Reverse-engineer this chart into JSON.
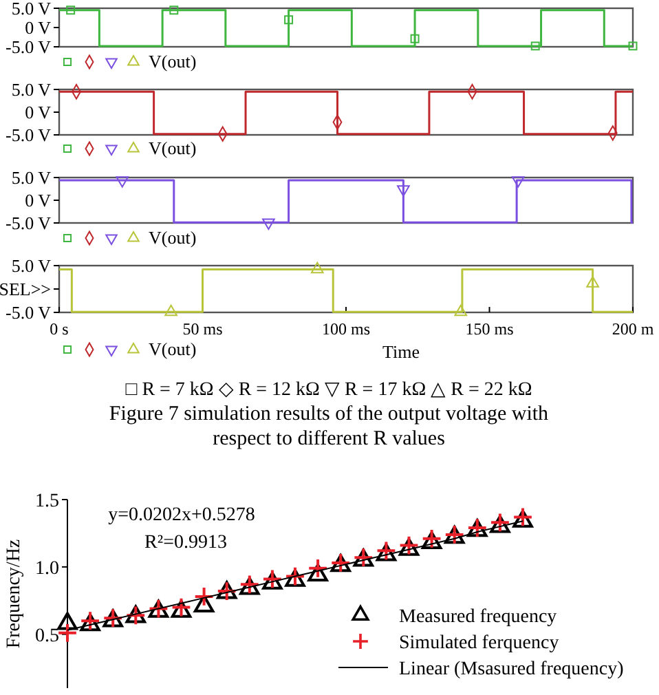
{
  "chart_data": [
    {
      "type": "step",
      "xlim": [
        0,
        200
      ],
      "ylim": [
        -5,
        5
      ],
      "yticks": [
        {
          "value": 5,
          "label": "5.0 V"
        },
        {
          "value": 0,
          "label": "0 V"
        },
        {
          "value": -5,
          "label": "-5.0 V"
        }
      ],
      "tick_labels": "y",
      "annotations": [
        "V(out)"
      ],
      "series": [
        {
          "type": "step",
          "color": "#3fb63f",
          "marker": "none",
          "x": [
            0,
            14,
            36,
            58,
            80,
            102,
            124,
            146,
            168,
            190,
            200
          ],
          "values": [
            4.5,
            -4.8,
            4.5,
            -4.8,
            4.5,
            -4.8,
            4.5,
            -4.8,
            4.5,
            -4.8,
            -4.8
          ]
        },
        {
          "type": "scatter",
          "color": "#3fb63f",
          "marker": "square",
          "x": [
            4,
            40,
            80,
            124,
            166,
            200
          ],
          "values": [
            4.5,
            4.5,
            2,
            -2.9,
            -4.8,
            -4.8
          ]
        }
      ]
    },
    {
      "type": "step",
      "xlim": [
        0,
        200
      ],
      "ylim": [
        -5,
        5
      ],
      "yticks": [
        {
          "value": 5,
          "label": "5.0 V"
        },
        {
          "value": 0,
          "label": "0 V"
        },
        {
          "value": -5,
          "label": "-5.0 V"
        }
      ],
      "tick_labels": "y",
      "annotations": [
        "V(out)"
      ],
      "series": [
        {
          "type": "step",
          "color": "#c0282d",
          "marker": "none",
          "x": [
            0,
            33,
            65,
            97,
            129,
            162,
            194,
            200
          ],
          "values": [
            4.5,
            -4.8,
            4.5,
            -4.8,
            4.5,
            -4.8,
            4.5,
            4.5
          ]
        },
        {
          "type": "scatter",
          "color": "#c0282d",
          "marker": "diamond",
          "x": [
            6,
            57,
            97,
            144,
            193
          ],
          "values": [
            4.5,
            -4.8,
            -2.2,
            4.5,
            -4.6
          ]
        }
      ]
    },
    {
      "type": "step",
      "xlim": [
        0,
        200
      ],
      "ylim": [
        -5,
        5
      ],
      "yticks": [
        {
          "value": 5,
          "label": "5.0 V"
        },
        {
          "value": 0,
          "label": "0 V"
        },
        {
          "value": -5,
          "label": "-5.0 V"
        }
      ],
      "tick_labels": "y",
      "annotations": [
        "V(out)"
      ],
      "series": [
        {
          "type": "step",
          "color": "#7b4fe0",
          "marker": "none",
          "x": [
            0,
            40,
            80,
            120,
            159.5,
            199.5,
            200
          ],
          "values": [
            4.4,
            -4.9,
            4.4,
            -4.9,
            4.4,
            -4.9,
            -4.9
          ]
        },
        {
          "type": "scatter",
          "color": "#7b4fe0",
          "marker": "triangle-down",
          "x": [
            22,
            73,
            120,
            160
          ],
          "values": [
            4.4,
            -4.9,
            2.4,
            4.4
          ]
        }
      ]
    },
    {
      "type": "step",
      "xlim": [
        0,
        200
      ],
      "xticks": [
        {
          "value": 0,
          "label": "0 s"
        },
        {
          "value": 50,
          "label": "50 ms"
        },
        {
          "value": 100,
          "label": "100 ms"
        },
        {
          "value": 150,
          "label": "150 ms"
        },
        {
          "value": 200,
          "label": "200 m"
        }
      ],
      "ylim": [
        -5,
        5
      ],
      "yticks": [
        {
          "value": 5,
          "label": "5.0 V"
        },
        {
          "value": 0,
          "label": "SEL>>"
        },
        {
          "value": -5,
          "label": "-5.0 V"
        }
      ],
      "xlabel": "Time",
      "annotations": [
        "V(out)",
        "□ R = 7 kΩ     ◇ R = 12 kΩ     ▽ R = 17 kΩ     △ R = 22 kΩ",
        "Figure 7    simulation results of the output voltage with",
        "respect to different R values"
      ],
      "series": [
        {
          "type": "step",
          "color": "#b8c43a",
          "marker": "none",
          "x": [
            0,
            4.4,
            50,
            95.5,
            140.5,
            186,
            200
          ],
          "values": [
            4.2,
            -4.9,
            4.2,
            -4.9,
            4.2,
            -4.9,
            -4.9
          ]
        },
        {
          "type": "scatter",
          "color": "#b8c43a",
          "marker": "triangle",
          "x": [
            39,
            90,
            140,
            186
          ],
          "values": [
            -4.9,
            4.2,
            -4.9,
            1.2
          ]
        }
      ]
    },
    {
      "type": "scatter",
      "categories": [
        null,
        null,
        null,
        null,
        null,
        null,
        null,
        null,
        null,
        null,
        null,
        null,
        null,
        null,
        null,
        null,
        null,
        null,
        null,
        null,
        null
      ],
      "ylim": [
        0.1,
        1.5
      ],
      "yticks": [
        {
          "value": 0.5,
          "label": "0.5"
        },
        {
          "value": 1,
          "label": "1.0"
        },
        {
          "value": 1.5,
          "label": "1.5"
        }
      ],
      "tick_labels": "y",
      "ylabel": "Frequency/Hz",
      "legend": "right",
      "annotations": [
        "y=0.0202x+0.5278",
        "R²=0.9913"
      ],
      "series": [
        {
          "name": "Measured frequency",
          "type": "scatter",
          "marker": "triangle",
          "color": "#000000",
          "values": [
            0.58,
            0.57,
            0.6,
            0.63,
            0.67,
            0.67,
            0.71,
            0.81,
            0.84,
            0.88,
            0.9,
            0.94,
            1.01,
            1.05,
            1.09,
            1.13,
            1.18,
            1.22,
            1.27,
            1.3,
            1.34
          ]
        },
        {
          "name": "Simulated ferquency",
          "type": "scatter",
          "marker": "cross",
          "color": "#e8202a",
          "values": [
            0.51,
            0.6,
            0.62,
            0.64,
            0.69,
            0.7,
            0.78,
            0.82,
            0.87,
            0.91,
            0.93,
            0.99,
            1.03,
            1.07,
            1.12,
            1.16,
            1.21,
            1.24,
            1.29,
            1.33,
            1.37
          ]
        },
        {
          "name": "Linear (Msasured frequency)",
          "type": "line",
          "line_style": "solid",
          "marker": "none",
          "color": "#000000",
          "values": [
            0.53,
            0.57,
            0.61,
            0.65,
            0.69,
            0.73,
            0.77,
            0.81,
            0.85,
            0.89,
            0.93,
            0.97,
            1.01,
            1.05,
            1.09,
            1.13,
            1.17,
            1.21,
            1.26,
            1.3,
            1.34
          ]
        }
      ]
    }
  ]
}
